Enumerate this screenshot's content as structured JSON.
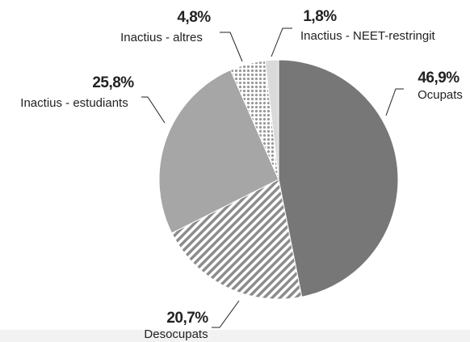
{
  "chart_data": {
    "type": "pie",
    "categories": [
      "Ocupats",
      "Desocupats",
      "Inactius - estudiants",
      "Inactius - altres",
      "Inactius - NEET-restringit"
    ],
    "values": [
      46.9,
      20.7,
      25.8,
      4.8,
      1.8
    ],
    "value_labels": [
      "46,9%",
      "20,7%",
      "25,8%",
      "4,8%",
      "1,8%"
    ],
    "colors": [
      "#777777",
      "#8c8c8c",
      "#a6a6a6",
      "#9a9a9a",
      "#dadada"
    ],
    "patterns": [
      null,
      "stripes",
      null,
      "dots",
      null
    ]
  }
}
